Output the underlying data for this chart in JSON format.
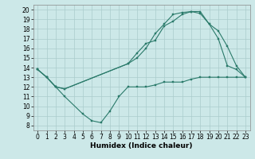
{
  "background_color": "#cce8e8",
  "grid_color": "#aacccc",
  "line_color": "#2a7a6a",
  "xlabel": "Humidex (Indice chaleur)",
  "xlim": [
    -0.5,
    23.5
  ],
  "ylim": [
    7.5,
    20.5
  ],
  "xticks": [
    0,
    1,
    2,
    3,
    4,
    5,
    6,
    7,
    8,
    9,
    10,
    11,
    12,
    13,
    14,
    15,
    16,
    17,
    18,
    19,
    20,
    21,
    22,
    23
  ],
  "yticks": [
    8,
    9,
    10,
    11,
    12,
    13,
    14,
    15,
    16,
    17,
    18,
    19,
    20
  ],
  "line1_x": [
    0,
    1,
    2,
    3,
    5,
    6,
    7,
    8,
    9,
    10,
    11,
    12,
    13,
    14,
    15,
    16,
    17,
    18,
    19,
    20,
    21,
    22,
    23
  ],
  "line1_y": [
    13.8,
    13.0,
    12.0,
    11.0,
    9.2,
    8.5,
    8.3,
    9.5,
    11.0,
    12.0,
    12.0,
    12.0,
    12.2,
    12.5,
    12.5,
    12.5,
    12.8,
    13.0,
    13.0,
    13.0,
    13.0,
    13.0,
    13.0
  ],
  "line2_x": [
    0,
    1,
    2,
    3,
    10,
    11,
    12,
    13,
    14,
    15,
    16,
    17,
    18,
    19,
    20,
    21,
    22,
    23
  ],
  "line2_y": [
    13.8,
    13.0,
    12.0,
    11.8,
    14.4,
    15.5,
    16.5,
    16.8,
    18.3,
    18.8,
    19.5,
    19.8,
    19.8,
    18.5,
    17.8,
    16.2,
    14.2,
    13.0
  ],
  "line3_x": [
    0,
    1,
    2,
    3,
    10,
    11,
    12,
    13,
    14,
    15,
    16,
    17,
    18,
    19,
    20,
    21,
    22,
    23
  ],
  "line3_y": [
    13.8,
    13.0,
    12.0,
    11.8,
    14.4,
    15.0,
    16.0,
    17.5,
    18.5,
    19.5,
    19.7,
    19.8,
    19.6,
    18.5,
    17.0,
    14.2,
    13.8,
    13.0
  ],
  "lw": 0.8,
  "ms": 2.0,
  "tick_fontsize": 5.5,
  "xlabel_fontsize": 6.5
}
